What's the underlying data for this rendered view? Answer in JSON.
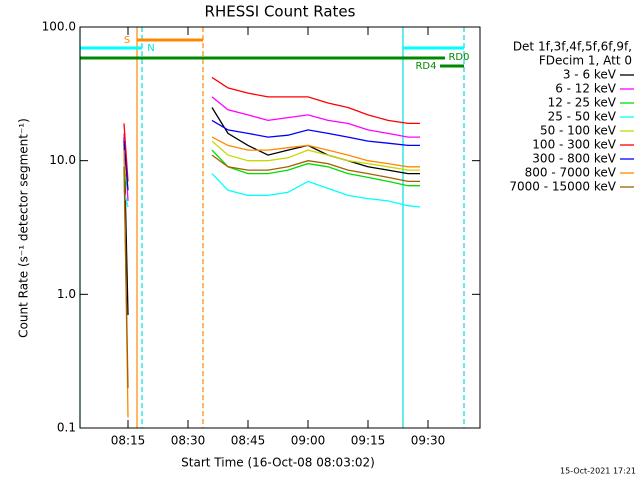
{
  "chart_data": {
    "type": "line",
    "title": "RHESSI Count Rates",
    "x_label": "Start Time (16-Oct-08 08:03:02)",
    "y_label": "Count Rate (s⁻¹ detector segment⁻¹)",
    "legend_header": [
      "Det 1f,3f,4f,5f,6f,9f,",
      "FDecim 1, Att 0"
    ],
    "footer": "15-Oct-2021 17:21",
    "annotations": [
      "S",
      "N",
      "RD0",
      "RD4"
    ],
    "log_y": true,
    "xlim": [
      "08:03",
      "09:43"
    ],
    "xticks": [
      "08:15",
      "08:30",
      "08:45",
      "09:00",
      "09:15",
      "09:30"
    ],
    "ylim": [
      0.1,
      100
    ],
    "yticks": [
      0.1,
      {
        "value": 1,
        "label": "1.0"
      },
      {
        "value": 10,
        "label": "10.0"
      },
      {
        "value": 100,
        "label": "100.0"
      }
    ],
    "legend_position": "right",
    "x": [
      "08:14",
      "08:15",
      "08:25",
      "08:36",
      "08:40",
      "08:45",
      "08:50",
      "08:55",
      "09:00",
      "09:05",
      "09:10",
      "09:15",
      "09:20",
      "09:25",
      "09:28"
    ],
    "series": [
      {
        "name": "3 - 6 keV",
        "color": "#000000",
        "values": [
          15,
          0.7,
          null,
          25,
          16,
          13,
          11,
          12,
          13,
          11,
          10,
          9,
          8.5,
          8,
          8
        ]
      },
      {
        "name": "6 - 12 keV",
        "color": "#ff00ff",
        "values": [
          16,
          5,
          null,
          30,
          24,
          22,
          20,
          21,
          22,
          20,
          19,
          17,
          16,
          15,
          15
        ]
      },
      {
        "name": "12 - 25 keV",
        "color": "#00dd00",
        "values": [
          8,
          6,
          null,
          12,
          9,
          8,
          8,
          8.5,
          9.5,
          9,
          8,
          7.5,
          7,
          6.5,
          6.5
        ]
      },
      {
        "name": "25 - 50 keV",
        "color": "#00ffff",
        "values": [
          6,
          4.5,
          null,
          8,
          6,
          5.5,
          5.5,
          5.8,
          7,
          6.2,
          5.5,
          5.2,
          5,
          4.6,
          4.5
        ]
      },
      {
        "name": "50 - 100 keV",
        "color": "#c8d800",
        "values": [
          10,
          6,
          null,
          14,
          11,
          10,
          10,
          10.5,
          12,
          11,
          10,
          9.5,
          9,
          8.5,
          8.5
        ]
      },
      {
        "name": "100 - 300 keV",
        "color": "#ff0000",
        "values": [
          19,
          7,
          null,
          42,
          35,
          32,
          30,
          30,
          30,
          27,
          25,
          22,
          20,
          19,
          19
        ]
      },
      {
        "name": "300 - 800 keV",
        "color": "#0000ff",
        "values": [
          14,
          6,
          null,
          20,
          17,
          16,
          15,
          15.5,
          17,
          16,
          15,
          14,
          13.5,
          13,
          13
        ]
      },
      {
        "name": "800 - 7000 keV",
        "color": "#ff8800",
        "values": [
          12,
          0.12,
          null,
          15,
          13,
          12,
          12,
          12.5,
          13,
          12,
          11,
          10,
          9.5,
          9,
          9
        ]
      },
      {
        "name": "7000 - 15000 keV",
        "color": "#a06000",
        "values": [
          9,
          0.2,
          null,
          11,
          9,
          8.5,
          8.5,
          9,
          10,
          9.5,
          8.5,
          8,
          7.5,
          7,
          7
        ]
      }
    ]
  }
}
